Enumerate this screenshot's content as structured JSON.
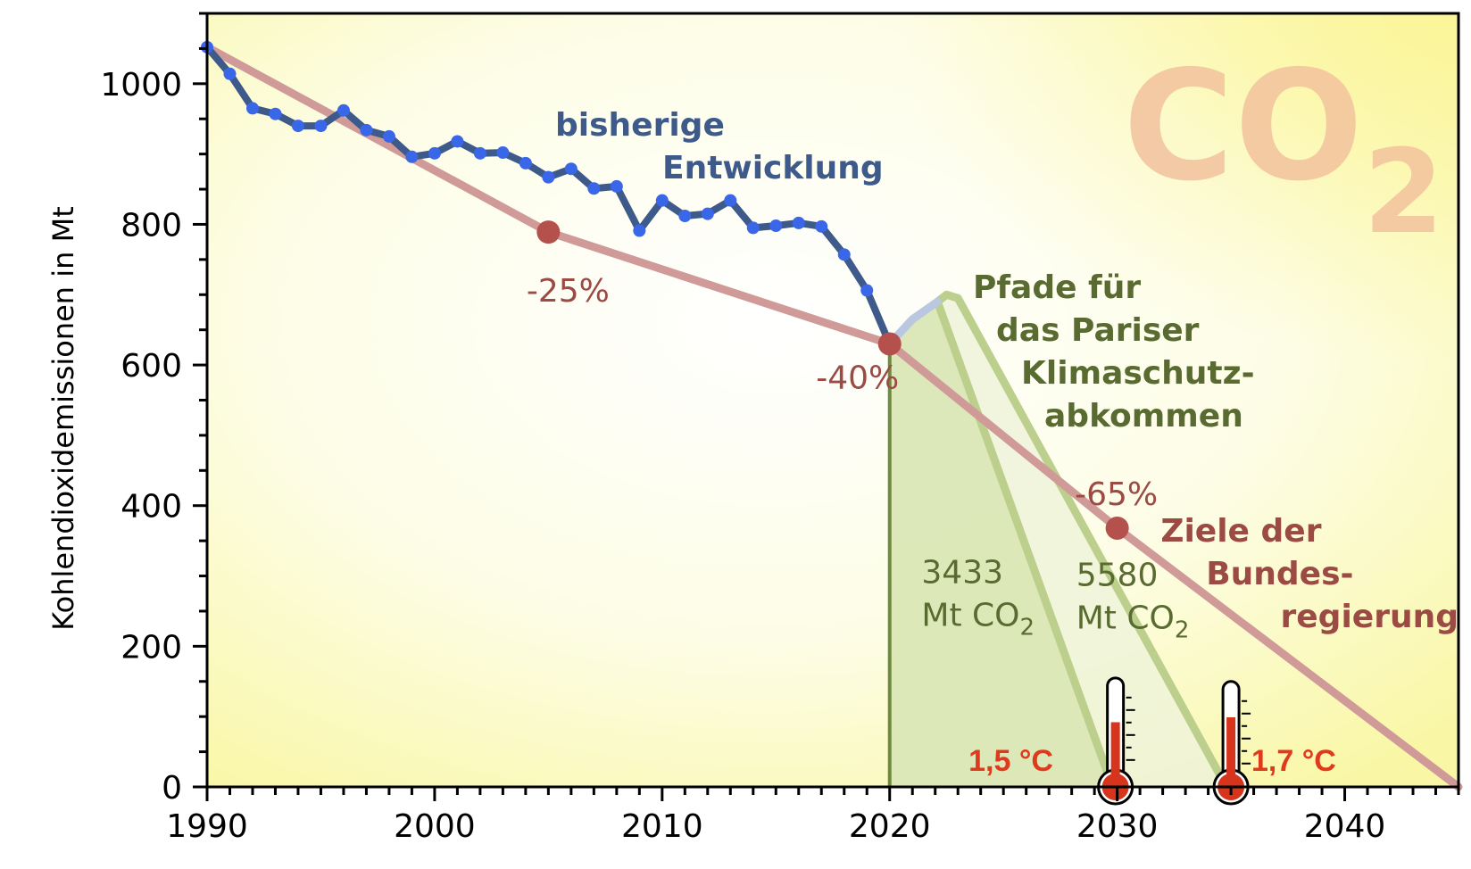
{
  "chart_data": {
    "type": "line",
    "title": "",
    "xlabel": "",
    "ylabel": "Kohlendioxidemissionen in Mt",
    "xlim": [
      1990,
      2045
    ],
    "ylim": [
      0,
      1100
    ],
    "x_ticks": [
      1990,
      2000,
      2010,
      2020,
      2030,
      2040
    ],
    "y_ticks": [
      0,
      200,
      400,
      600,
      800,
      1000
    ],
    "grid": false,
    "watermark": {
      "main": "CO",
      "sub": "2"
    },
    "series": [
      {
        "name": "bisherige Entwicklung",
        "color": "#3d5a8a",
        "marker_color": "#3a66e8",
        "points": [
          [
            1990,
            1052
          ],
          [
            1991,
            1014
          ],
          [
            1992,
            965
          ],
          [
            1993,
            957
          ],
          [
            1994,
            940
          ],
          [
            1995,
            940
          ],
          [
            1996,
            962
          ],
          [
            1997,
            934
          ],
          [
            1998,
            925
          ],
          [
            1999,
            896
          ],
          [
            2000,
            901
          ],
          [
            2001,
            918
          ],
          [
            2002,
            901
          ],
          [
            2003,
            902
          ],
          [
            2004,
            887
          ],
          [
            2005,
            867
          ],
          [
            2006,
            879
          ],
          [
            2007,
            851
          ],
          [
            2008,
            854
          ],
          [
            2009,
            791
          ],
          [
            2010,
            834
          ],
          [
            2011,
            812
          ],
          [
            2012,
            815
          ],
          [
            2013,
            834
          ],
          [
            2014,
            795
          ],
          [
            2015,
            798
          ],
          [
            2016,
            802
          ],
          [
            2017,
            797
          ],
          [
            2018,
            757
          ],
          [
            2019,
            706
          ],
          [
            2020,
            630
          ]
        ]
      },
      {
        "name": "Ziele der Bundesregierung",
        "color": "#cf9a98",
        "marker_color": "#b5514c",
        "points": [
          [
            1990,
            1052
          ],
          [
            2005,
            789
          ],
          [
            2020,
            630
          ],
          [
            2030,
            368
          ],
          [
            2045,
            0
          ]
        ],
        "markers": [
          {
            "x": 2005,
            "y": 789,
            "label": "-25%"
          },
          {
            "x": 2020,
            "y": 630,
            "label": "-40%"
          },
          {
            "x": 2030,
            "y": 368,
            "label": "-65%"
          }
        ]
      },
      {
        "name": "Pfad 1,5 °C",
        "color": "#bccf8c",
        "points": [
          [
            2020,
            630
          ],
          [
            2021,
            665
          ],
          [
            2022.1,
            690
          ],
          [
            2029.8,
            0
          ]
        ],
        "budget": "3433 Mt CO2",
        "temperature": "1,5 °C"
      },
      {
        "name": "Pfad 1,7 °C",
        "color": "#bccf8c",
        "points": [
          [
            2020,
            630
          ],
          [
            2021,
            665
          ],
          [
            2022.1,
            690
          ],
          [
            2022.5,
            700
          ],
          [
            2023,
            695
          ],
          [
            2034.8,
            0
          ]
        ],
        "budget": "5580 Mt CO2",
        "temperature": "1,7 °C"
      }
    ],
    "annotations": {
      "history": [
        "bisherige",
        "Entwicklung"
      ],
      "paths": [
        "Pfade für",
        "das Pariser",
        "Klimaschutz-",
        "abkommen"
      ],
      "goals": [
        "Ziele der",
        "Bundes-",
        "regierung"
      ],
      "budget_1": {
        "line1": "3433",
        "line2": "Mt CO",
        "sub": "2"
      },
      "budget_2": {
        "line1": "5580",
        "line2": "Mt CO",
        "sub": "2"
      },
      "temp_1": "1,5 °C",
      "temp_2": "1,7 °C"
    },
    "colors": {
      "history_text": "#3d5a8a",
      "paths_text": "#5a6b32",
      "goals_text": "#9c4a44"
    }
  }
}
